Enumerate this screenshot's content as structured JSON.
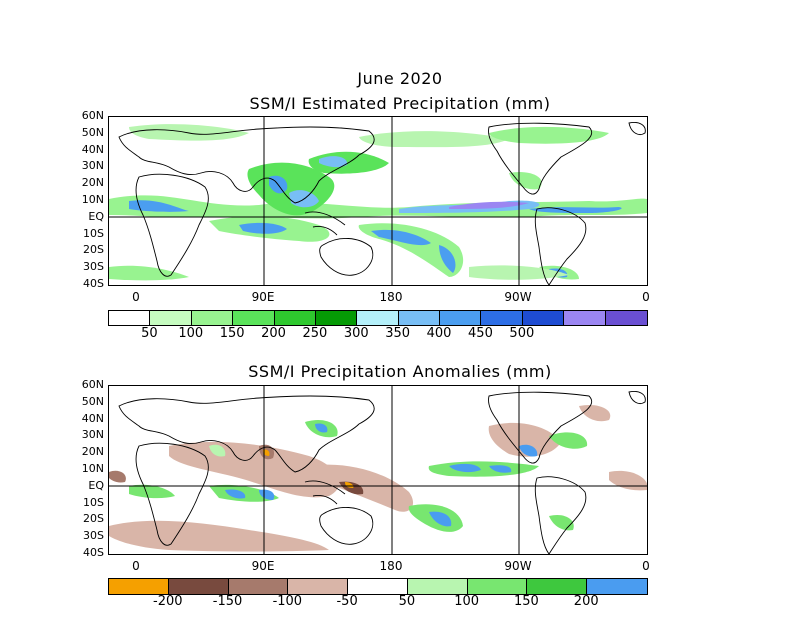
{
  "main_title": "June 2020",
  "top_panel": {
    "title": "SSM/I Estimated Precipitation (mm)",
    "lat_labels": [
      "60N",
      "50N",
      "40N",
      "30N",
      "20N",
      "10N",
      "EQ",
      "10S",
      "20S",
      "30S",
      "40S"
    ],
    "lon_labels": [
      "0",
      "90E",
      "180",
      "90W",
      "0"
    ],
    "colorbar": {
      "colors": [
        "#ffffff",
        "#c6fcc0",
        "#98f390",
        "#5ae35a",
        "#2ec82e",
        "#059a05",
        "#b4f0fa",
        "#78bef5",
        "#4b9ef0",
        "#2d6ee6",
        "#1e4cd2",
        "#9b86f2",
        "#6a4fd2"
      ],
      "labels": [
        "50",
        "100",
        "150",
        "200",
        "250",
        "300",
        "350",
        "400",
        "450",
        "500"
      ]
    }
  },
  "bottom_panel": {
    "title": "SSM/I Precipitation Anomalies (mm)",
    "lat_labels": [
      "60N",
      "50N",
      "40N",
      "30N",
      "20N",
      "10N",
      "EQ",
      "10S",
      "20S",
      "30S",
      "40S"
    ],
    "lon_labels": [
      "0",
      "90E",
      "180",
      "90W",
      "0"
    ],
    "colorbar": {
      "colors": [
        "#f5a000",
        "#784a3e",
        "#a67a6c",
        "#d9b5a8",
        "#ffffff",
        "#b8f5b0",
        "#78e670",
        "#3ec83e",
        "#4a9cf0"
      ],
      "labels": [
        "-200",
        "-150",
        "-100",
        "-50",
        "50",
        "100",
        "150",
        "200"
      ]
    }
  },
  "colors": {
    "land_outline": "#000000",
    "light_green": "#b8f5b0",
    "green": "#5ae35a",
    "dark_green": "#059a05",
    "light_blue": "#78bef5",
    "blue": "#4b9ef0",
    "purple": "#6a4fd2",
    "tan": "#d9b5a8",
    "brown": "#a67a6c",
    "dark_brown": "#784a3e",
    "orange": "#f5a000"
  }
}
